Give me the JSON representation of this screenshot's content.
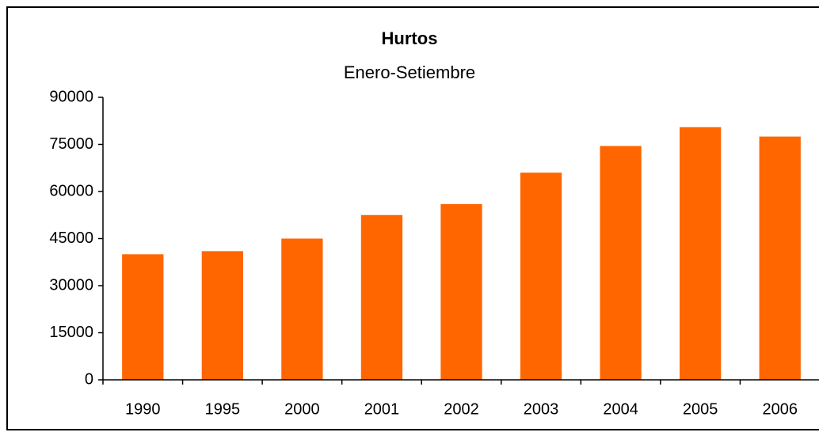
{
  "chart_data": {
    "type": "bar",
    "title": "Hurtos",
    "subtitle": "Enero-Setiembre",
    "categories": [
      "1990",
      "1995",
      "2000",
      "2001",
      "2002",
      "2003",
      "2004",
      "2005",
      "2006"
    ],
    "values": [
      40000,
      41000,
      45000,
      52500,
      56000,
      66000,
      74500,
      80500,
      77500
    ],
    "color": "#ff6600",
    "ylim": [
      0,
      90000
    ],
    "yticks": [
      0,
      15000,
      30000,
      45000,
      60000,
      75000,
      90000
    ],
    "grid": false
  }
}
